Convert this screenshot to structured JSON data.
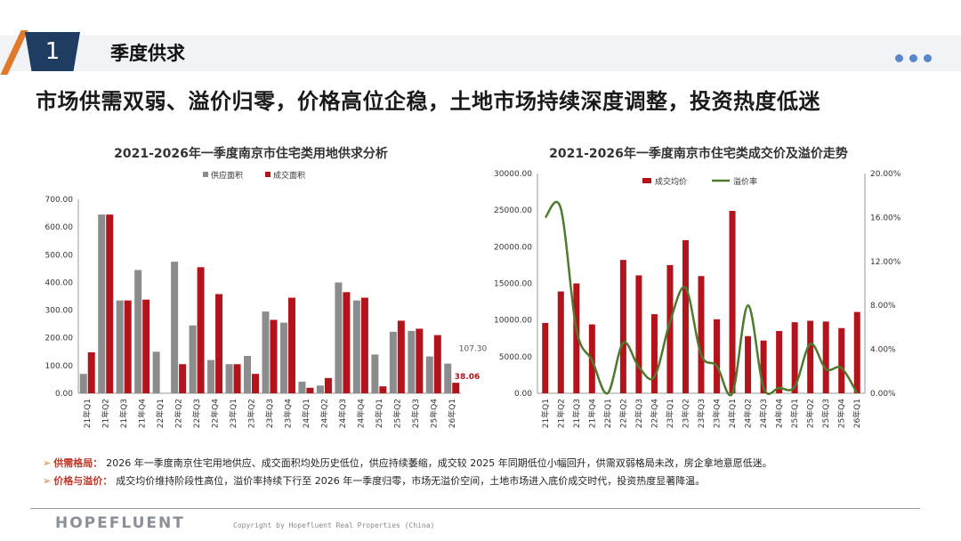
{
  "header": {
    "number": "1",
    "title": "季度供求"
  },
  "headline": "市场供需双弱、溢价归零，价格高位企稳，土地市场持续深度调整，投资热度低迷",
  "bullets": [
    {
      "label": "供需格局：",
      "text": "2026 年一季度南京住宅用地供应、成交面积均处历史低位，供应持续萎缩，成交较 2025 年同期低位小幅回升，供需双弱格局未改，房企拿地意愿低迷。"
    },
    {
      "label": "价格与溢价：",
      "text": "成交均价维持阶段性高位，溢价率持续下行至 2026 年一季度归零，市场无溢价空间，土地市场进入底价成交时代，投资热度显著降温。"
    }
  ],
  "footer": {
    "logo": "HOPEFLUENT",
    "copyright": "Copyright by Hopefluent Real Properties (China)"
  },
  "colors": {
    "supply": "#8c8c8c",
    "deal": "#b3141c",
    "premium": "#4e7a2e",
    "brand_navy": "#1f3d62",
    "accent_orange": "#e07a2a"
  },
  "chart_data": [
    {
      "type": "bar",
      "title": "2021-2026年一季度南京市住宅类用地供求分析",
      "categories": [
        "21年Q1",
        "21年Q2",
        "21年Q3",
        "21年Q4",
        "22年Q1",
        "22年Q2",
        "22年Q3",
        "22年Q4",
        "23年Q1",
        "23年Q2",
        "23年Q3",
        "23年Q4",
        "24年Q1",
        "24年Q2",
        "24年Q3",
        "24年Q4",
        "25年Q1",
        "25年Q2",
        "25年Q3",
        "25年Q4",
        "26年Q1"
      ],
      "series": [
        {
          "name": "供应面积",
          "values": [
            70,
            645,
            335,
            445,
            150,
            475,
            245,
            120,
            105,
            135,
            295,
            255,
            42,
            28,
            400,
            335,
            140,
            222,
            225,
            133,
            107.3
          ]
        },
        {
          "name": "成交面积",
          "values": [
            148,
            645,
            335,
            338,
            0,
            105,
            455,
            358,
            105,
            70,
            265,
            345,
            20,
            55,
            365,
            345,
            25,
            262,
            233,
            210,
            38.06
          ]
        }
      ],
      "data_labels": [
        "107.30",
        "38.06"
      ],
      "ylim": [
        0,
        700
      ],
      "yticks": [
        "0.00",
        "100.00",
        "200.00",
        "300.00",
        "400.00",
        "500.00",
        "600.00",
        "700.00"
      ],
      "legend_position": "top",
      "grid": false
    },
    {
      "type": "bar+line",
      "title": "2021-2026年一季度南京市住宅类成交价及溢价走势",
      "categories": [
        "21年Q1",
        "21年Q2",
        "21年Q3",
        "21年Q4",
        "22年Q1",
        "22年Q2",
        "22年Q3",
        "22年Q4",
        "23年Q1",
        "23年Q2",
        "23年Q3",
        "23年Q4",
        "24年Q1",
        "24年Q2",
        "24年Q3",
        "24年Q4",
        "25年Q1",
        "25年Q2",
        "25年Q3",
        "25年Q4",
        "26年Q1"
      ],
      "series": [
        {
          "name": "成交均价",
          "type": "bar",
          "axis": "left",
          "values": [
            9600,
            13900,
            15000,
            9400,
            0,
            18200,
            16100,
            10800,
            17500,
            20900,
            16000,
            10100,
            24900,
            7800,
            7200,
            8500,
            9700,
            9900,
            9800,
            8900,
            11100
          ]
        },
        {
          "name": "溢价率",
          "type": "line",
          "axis": "right",
          "values": [
            16.0,
            16.8,
            5.8,
            3.0,
            0.0,
            4.6,
            2.4,
            1.5,
            6.5,
            9.6,
            3.5,
            2.5,
            0.0,
            8.0,
            0.5,
            0.5,
            0.6,
            4.5,
            2.2,
            2.3,
            0.0
          ]
        }
      ],
      "ylim_left": [
        0,
        30000
      ],
      "yticks_left": [
        "0.00",
        "5000.00",
        "10000.00",
        "15000.00",
        "20000.00",
        "25000.00",
        "30000.00"
      ],
      "ylim_right": [
        0,
        20
      ],
      "yticks_right": [
        "0.00%",
        "4.00%",
        "8.00%",
        "12.00%",
        "16.00%",
        "20.00%"
      ],
      "legend_position": "top",
      "grid": false
    }
  ]
}
